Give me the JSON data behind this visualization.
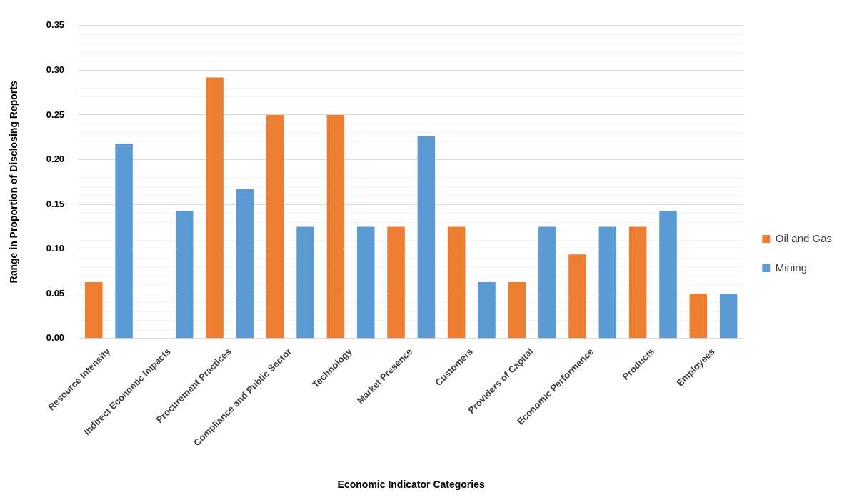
{
  "chart_data": {
    "type": "bar",
    "xlabel": "Economic Indicator Categories",
    "ylabel": "Range in Proportion of Disclosing Reports",
    "categories": [
      "Resource Intensity",
      "Indirect Economic Impacts",
      "Procurement Practices",
      "Compliance and Public Sector",
      "Technology",
      "Market Presence",
      "Customers",
      "Providers of Capital",
      "Economic Performance",
      "Products",
      "Employees"
    ],
    "series": [
      {
        "name": "Oil and Gas",
        "color": "#ed7d31",
        "values": [
          0.063,
          0,
          0.292,
          0.25,
          0.25,
          0.125,
          0.125,
          0.063,
          0.094,
          0.125,
          0.05
        ]
      },
      {
        "name": "Mining",
        "color": "#5b9bd5",
        "values": [
          0.218,
          0.143,
          0.167,
          0.125,
          0.125,
          0.226,
          0.063,
          0.125,
          0.125,
          0.143,
          0.05
        ]
      }
    ],
    "ylim": [
      0,
      0.35
    ],
    "yticks": [
      {
        "value": 0,
        "label": "0.00"
      },
      {
        "value": 0.01,
        "label": null
      },
      {
        "value": 0.02,
        "label": null
      },
      {
        "value": 0.03,
        "label": null
      },
      {
        "value": 0.04,
        "label": null
      },
      {
        "value": 0.05,
        "label": "0.05"
      },
      {
        "value": 0.06,
        "label": null
      },
      {
        "value": 0.07,
        "label": null
      },
      {
        "value": 0.08,
        "label": null
      },
      {
        "value": 0.09,
        "label": null
      },
      {
        "value": 0.1,
        "label": "0.10"
      },
      {
        "value": 0.11,
        "label": null
      },
      {
        "value": 0.12,
        "label": null
      },
      {
        "value": 0.13,
        "label": null
      },
      {
        "value": 0.14,
        "label": null
      },
      {
        "value": 0.15,
        "label": "0.15"
      },
      {
        "value": 0.16,
        "label": null
      },
      {
        "value": 0.17,
        "label": null
      },
      {
        "value": 0.18,
        "label": null
      },
      {
        "value": 0.19,
        "label": null
      },
      {
        "value": 0.2,
        "label": "0.20"
      },
      {
        "value": 0.21,
        "label": null
      },
      {
        "value": 0.22,
        "label": null
      },
      {
        "value": 0.23,
        "label": null
      },
      {
        "value": 0.24,
        "label": null
      },
      {
        "value": 0.25,
        "label": "0.25"
      },
      {
        "value": 0.26,
        "label": null
      },
      {
        "value": 0.27,
        "label": null
      },
      {
        "value": 0.28,
        "label": null
      },
      {
        "value": 0.29,
        "label": null
      },
      {
        "value": 0.3,
        "label": "0.30"
      },
      {
        "value": 0.31,
        "label": null
      },
      {
        "value": 0.32,
        "label": null
      },
      {
        "value": 0.33,
        "label": null
      },
      {
        "value": 0.34,
        "label": null
      },
      {
        "value": 0.35,
        "label": "0.35"
      }
    ],
    "grid": "y",
    "legend": "right"
  }
}
